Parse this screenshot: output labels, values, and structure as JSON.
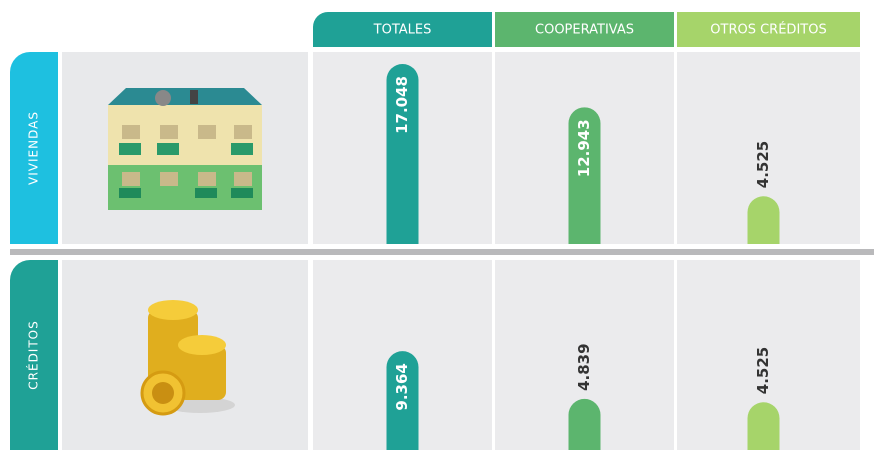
{
  "chart_data": {
    "type": "bar",
    "categories": [
      "TOTALES",
      "COOPERATIVAS",
      "OTROS CRÉDITOS"
    ],
    "colors": [
      "#1fa196",
      "#5cb56e",
      "#a6d46a"
    ],
    "series": [
      {
        "name": "VIVIENDAS",
        "color": "#1ec0e0",
        "values": [
          17048,
          12943,
          4525
        ],
        "value_labels": [
          "17.048",
          "12.943",
          "4.525"
        ]
      },
      {
        "name": "CRÉDITOS",
        "color": "#1fa196",
        "values": [
          9364,
          4839,
          4525
        ],
        "value_labels": [
          "9.364",
          "4.839",
          "4.525"
        ]
      }
    ]
  }
}
